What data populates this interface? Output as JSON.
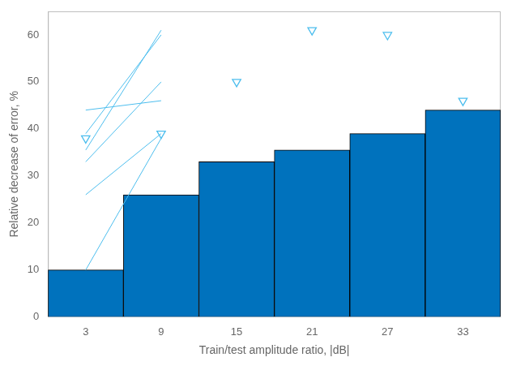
{
  "chart_data": {
    "type": "bar",
    "xlabel": "Train/test amplitude ratio, |dB|",
    "ylabel": "Relative decrease of error, %",
    "categories": [
      3,
      9,
      15,
      21,
      27,
      33
    ],
    "series": [
      {
        "type": "bar",
        "color": "#0072BD",
        "values": [
          10,
          26,
          33,
          35.5,
          39,
          44
        ]
      },
      {
        "type": "stem",
        "marker": "triangle-down",
        "color": "#4DBEEE",
        "values": [
          38,
          39,
          50,
          61,
          60,
          46
        ]
      }
    ],
    "ylim": [
      0,
      65
    ],
    "yticks": [
      0,
      10,
      20,
      30,
      40,
      50,
      60
    ],
    "grid": false
  }
}
